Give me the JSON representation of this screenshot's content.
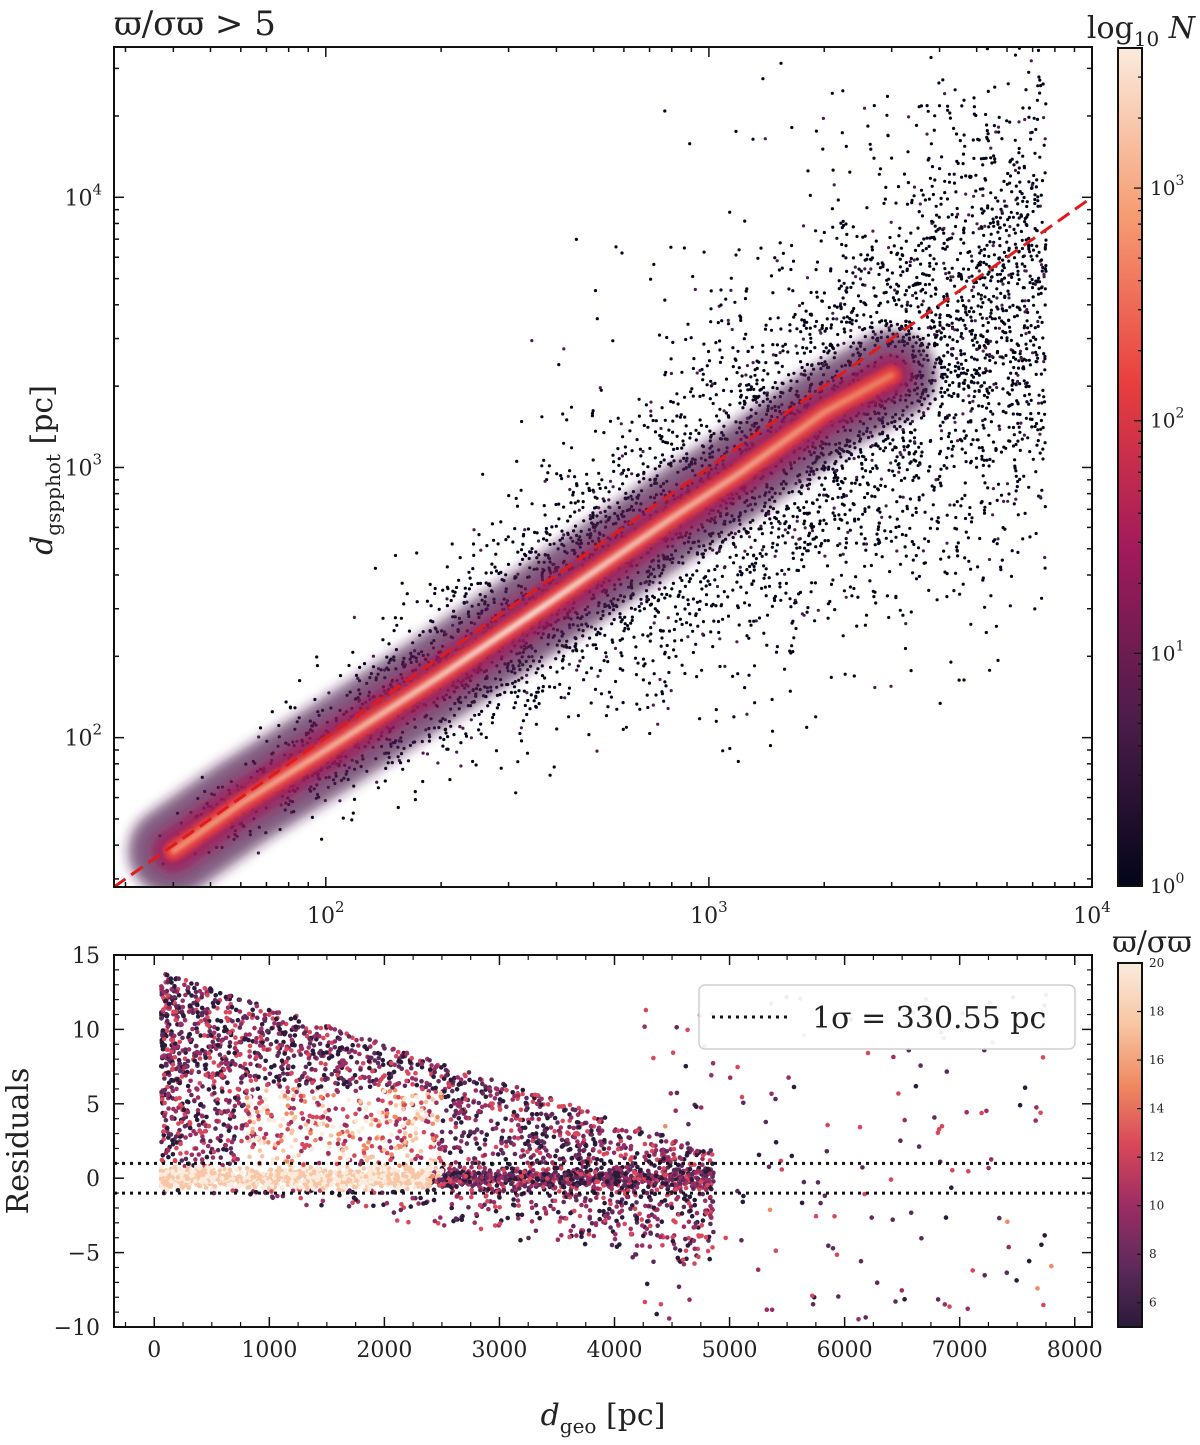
{
  "chart_data": [
    {
      "type": "scatter",
      "title": "ϖ/σϖ > 5",
      "xlabel": "",
      "ylabel": "dgspphot [pc]",
      "ylabel_main": "d",
      "ylabel_sub": "gspphot",
      "ylabel_unit": " [pc]",
      "xscale": "log",
      "yscale": "log",
      "xlim": [
        28,
        10000
      ],
      "ylim": [
        28,
        36000
      ],
      "xticks": [
        {
          "value": 100,
          "base": "10",
          "exp": "2"
        },
        {
          "value": 1000,
          "base": "10",
          "exp": "3"
        },
        {
          "value": 10000,
          "base": "10",
          "exp": "4"
        }
      ],
      "yticks": [
        {
          "value": 100,
          "base": "10",
          "exp": "2"
        },
        {
          "value": 1000,
          "base": "10",
          "exp": "3"
        },
        {
          "value": 10000,
          "base": "10",
          "exp": "4"
        }
      ],
      "reference_line": {
        "style": "dashed",
        "color": "#e01b1b",
        "relation": "y = x"
      },
      "density_ridge": [
        {
          "x": 40,
          "y": 38
        },
        {
          "x": 60,
          "y": 57
        },
        {
          "x": 100,
          "y": 90
        },
        {
          "x": 200,
          "y": 170
        },
        {
          "x": 400,
          "y": 330
        },
        {
          "x": 800,
          "y": 650
        },
        {
          "x": 1200,
          "y": 950
        },
        {
          "x": 2000,
          "y": 1600
        },
        {
          "x": 3000,
          "y": 2200
        }
      ],
      "colorbar": {
        "label": "log10 N",
        "label_main": "log",
        "label_sub": "10",
        "label_var": " N",
        "scale": "log",
        "range": [
          1,
          4000
        ],
        "ticks": [
          {
            "value": 1,
            "base": "10",
            "exp": "0"
          },
          {
            "value": 10,
            "base": "10",
            "exp": "1"
          },
          {
            "value": 100,
            "base": "10",
            "exp": "2"
          },
          {
            "value": 1000,
            "base": "10",
            "exp": "3"
          }
        ],
        "colormap": "rocket",
        "colors": [
          "#03051a",
          "#4c1d4b",
          "#a11a5b",
          "#e83f3f",
          "#f69c73",
          "#faebdd"
        ]
      }
    },
    {
      "type": "scatter",
      "xlabel": "dgeo [pc]",
      "xlabel_main": "d",
      "xlabel_sub": "geo",
      "xlabel_unit": " [pc]",
      "ylabel": "Residuals",
      "xlim": [
        -350,
        8150
      ],
      "ylim": [
        -10,
        15
      ],
      "xticks": [
        "0",
        "1000",
        "2000",
        "3000",
        "4000",
        "5000",
        "6000",
        "7000",
        "8000"
      ],
      "xtick_values": [
        0,
        1000,
        2000,
        3000,
        4000,
        5000,
        6000,
        7000,
        8000
      ],
      "yticks": [
        "−10",
        "−5",
        "0",
        "5",
        "10",
        "15"
      ],
      "ytick_values": [
        -10,
        -5,
        0,
        5,
        10,
        15
      ],
      "hlines": [
        {
          "y": 1,
          "style": "dotted"
        },
        {
          "y": -1,
          "style": "dotted"
        }
      ],
      "legend": {
        "position": "upper-right",
        "text": "1σ = 330.55 pc",
        "style": "dotted"
      },
      "colorbar": {
        "label": "ϖ/σϖ",
        "range": [
          5,
          20
        ],
        "ticks": [
          "6",
          "8",
          "10",
          "12",
          "14",
          "16",
          "18",
          "20"
        ],
        "tick_values": [
          6,
          8,
          10,
          12,
          14,
          16,
          18,
          20
        ],
        "colormap": "rocket",
        "colors": [
          "#2a1b3a",
          "#5e2a5c",
          "#9c2d63",
          "#d9475a",
          "#f08a62",
          "#f8c6a4",
          "#faebdd"
        ]
      }
    }
  ]
}
